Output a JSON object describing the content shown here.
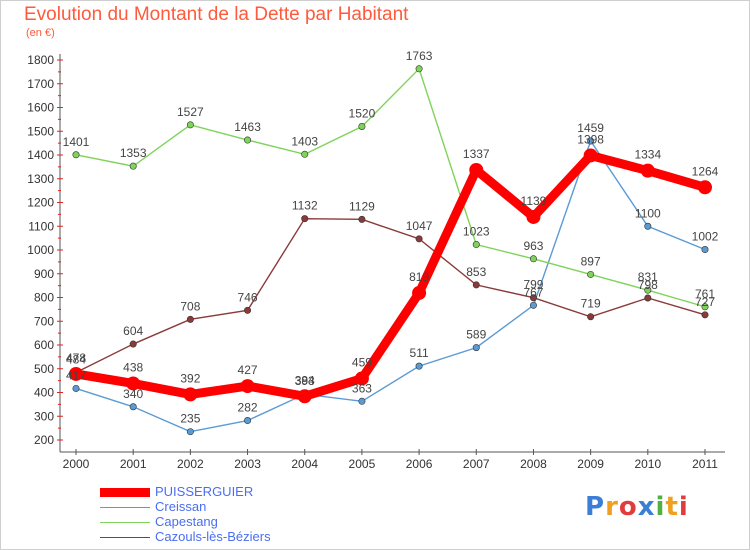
{
  "header": {
    "title": "Evolution du Montant de la Dette par Habitant",
    "subtitle": "(en €)"
  },
  "colors": {
    "title": "#ff5a3c",
    "axis": "#555555",
    "grid_tick": "#dd2222",
    "legend_text": "#4a6ef2"
  },
  "chart_data": {
    "type": "line",
    "title": "Evolution du Montant de la Dette par Habitant",
    "subtitle": "(en €)",
    "xlabel": "",
    "ylabel": "",
    "ylim": [
      200,
      1800
    ],
    "yticks": [
      200,
      300,
      400,
      500,
      600,
      700,
      800,
      900,
      1000,
      1100,
      1200,
      1300,
      1400,
      1500,
      1600,
      1700,
      1800
    ],
    "categories": [
      "2000",
      "2001",
      "2002",
      "2003",
      "2004",
      "2005",
      "2006",
      "2007",
      "2008",
      "2009",
      "2010",
      "2011"
    ],
    "grid": false,
    "legend_position": "bottom-left",
    "series": [
      {
        "name": "PUISSERGUIER",
        "color": "#ff0000",
        "emphasis": true,
        "values": [
          478,
          438,
          392,
          427,
          384,
          459,
          819,
          1337,
          1139,
          1398,
          1334,
          1264
        ]
      },
      {
        "name": "Creissan",
        "color": "#5b9bd5",
        "values": [
          417,
          340,
          235,
          282,
          393,
          363,
          511,
          589,
          767,
          1459,
          1100,
          1002
        ]
      },
      {
        "name": "Capestang",
        "color": "#7fd35a",
        "values": [
          1401,
          1353,
          1527,
          1463,
          1403,
          1520,
          1763,
          1023,
          963,
          897,
          831,
          761
        ]
      },
      {
        "name": "Cazouls-lès-Béziers",
        "color": "#8b3a3a",
        "values": [
          484,
          604,
          708,
          746,
          1132,
          1129,
          1047,
          853,
          799,
          719,
          798,
          727
        ]
      }
    ]
  },
  "logo": {
    "text": "Proxiti",
    "letters": [
      "P",
      "r",
      "o",
      "x",
      "i",
      "t",
      "i"
    ],
    "colors": [
      "#3a7fd5",
      "#f0a020",
      "#e03c3c",
      "#3a7fd5",
      "#50b040",
      "#f0a020",
      "#e03c3c"
    ]
  }
}
